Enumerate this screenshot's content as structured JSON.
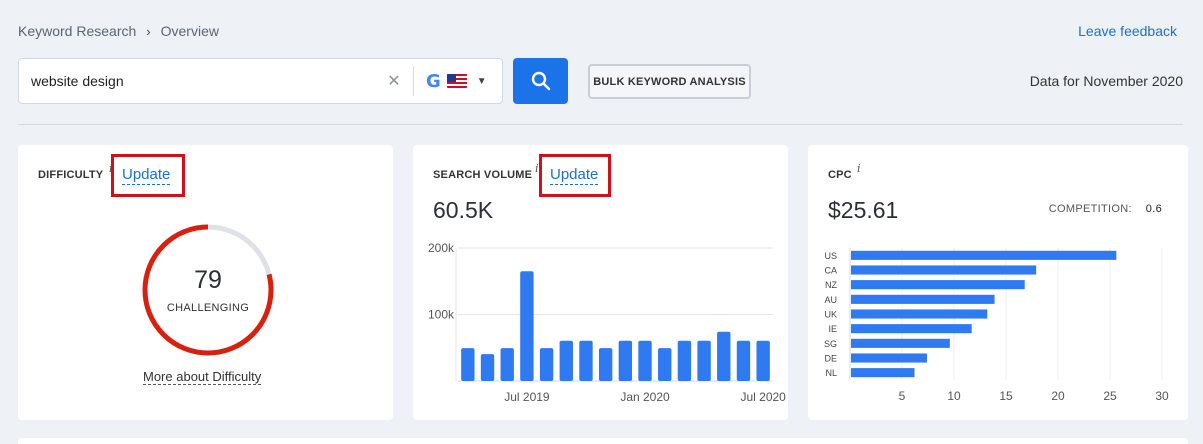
{
  "breadcrumb": {
    "root": "Keyword Research",
    "current": "Overview"
  },
  "feedback_label": "Leave feedback",
  "search": {
    "value": "website design",
    "engine": "google",
    "country": "us"
  },
  "bulk_label": "BULK KEYWORD ANALYSIS",
  "data_for": "Data for November 2020",
  "difficulty": {
    "title": "DIFFICULTY",
    "info": "i",
    "update_label": "Update",
    "score": "79",
    "score_value": 79,
    "level": "CHALLENGING",
    "more_label": "More about Difficulty",
    "ring_color": "#d9200f",
    "track_color": "#dfe1e8"
  },
  "volume": {
    "title": "SEARCH VOLUME",
    "info": "i",
    "update_label": "Update",
    "value": "60.5K"
  },
  "cpc": {
    "title": "CPC",
    "info": "i",
    "value": "$25.61",
    "competition_label": "COMPETITION:",
    "competition_value": "0.6"
  },
  "chart_data": [
    {
      "type": "bar",
      "x_tick_labels": [
        "Jul 2019",
        "Jan 2020",
        "Jul 2020"
      ],
      "x_tick_positions": [
        3.5,
        9.5,
        15.5
      ],
      "y_ticks": [
        "200k",
        "100k"
      ],
      "y_tick_values": [
        200000,
        100000
      ],
      "ylim": [
        0,
        200000
      ],
      "values": [
        49500,
        40500,
        49500,
        165000,
        49500,
        60500,
        60500,
        49500,
        60500,
        60500,
        49500,
        60500,
        60500,
        74000,
        60500,
        60500
      ],
      "color": "#2f7af0",
      "grid": true
    },
    {
      "type": "bar",
      "orientation": "horizontal",
      "categories": [
        "US",
        "CA",
        "NZ",
        "AU",
        "UK",
        "IE",
        "SG",
        "DE",
        "NL"
      ],
      "values": [
        25.61,
        17.9,
        16.8,
        13.9,
        13.2,
        11.7,
        9.6,
        7.4,
        6.2
      ],
      "x_ticks": [
        5,
        10,
        15,
        20,
        25,
        30
      ],
      "xlim": [
        0,
        30
      ],
      "color": "#2f7af0",
      "grid": true
    }
  ]
}
